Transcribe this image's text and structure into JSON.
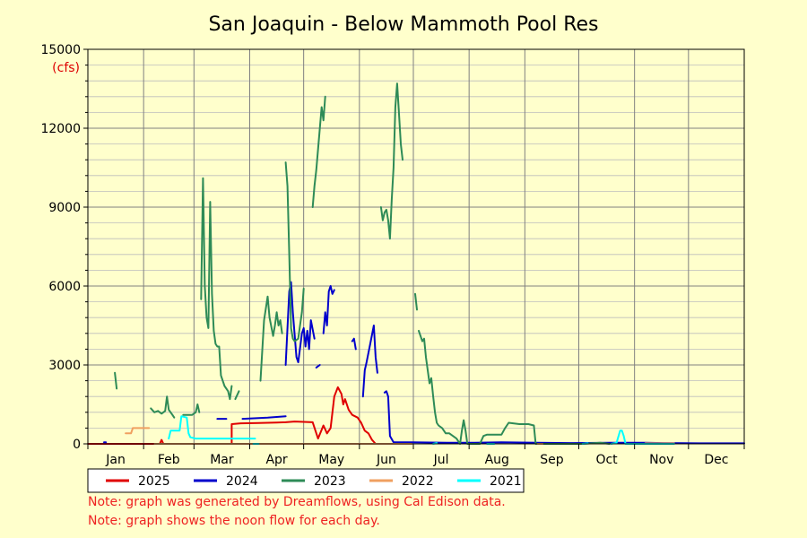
{
  "page": {
    "background": "#ffffcc"
  },
  "notes": [
    "Note: graph was generated by Dreamflows, using Cal Edison data.",
    "Note: graph shows the noon flow for each day."
  ],
  "chart_data": {
    "type": "line",
    "title": "San Joaquin - Below Mammoth Pool Res",
    "xlabel": "",
    "ylabel": "",
    "y_unit_label": "(cfs)",
    "ylim": [
      0,
      15000
    ],
    "y_ticks": [
      0,
      3000,
      6000,
      9000,
      12000,
      15000
    ],
    "x_range_days": [
      0,
      365
    ],
    "month_labels": [
      "Jan",
      "Feb",
      "Mar",
      "Apr",
      "May",
      "Jun",
      "Jul",
      "Aug",
      "Sep",
      "Oct",
      "Nov",
      "Dec"
    ],
    "month_starts_day": [
      0,
      31,
      59,
      90,
      120,
      151,
      181,
      212,
      243,
      273,
      304,
      334,
      365
    ],
    "grid": true,
    "legend_position": "bottom",
    "series": [
      {
        "name": "2025",
        "color": "#e00000",
        "segments": [
          [
            [
              0,
              0
            ],
            [
              40,
              0
            ],
            [
              41,
              150
            ],
            [
              42,
              0
            ],
            [
              80,
              0
            ],
            [
              80,
              750
            ],
            [
              85,
              780
            ],
            [
              95,
              790
            ],
            [
              105,
              810
            ],
            [
              110,
              820
            ],
            [
              115,
              850
            ],
            [
              125,
              820
            ],
            [
              128,
              200
            ],
            [
              131,
              700
            ],
            [
              133,
              400
            ],
            [
              135,
              600
            ],
            [
              137,
              1800
            ],
            [
              139,
              2150
            ],
            [
              141,
              1900
            ],
            [
              142,
              1500
            ],
            [
              143,
              1700
            ],
            [
              145,
              1300
            ],
            [
              147,
              1100
            ],
            [
              150,
              1000
            ],
            [
              152,
              800
            ],
            [
              154,
              500
            ],
            [
              156,
              400
            ],
            [
              158,
              150
            ],
            [
              160,
              0
            ],
            [
              175,
              0
            ],
            [
              180,
              0
            ]
          ]
        ]
      },
      {
        "name": "2024",
        "color": "#0000cc",
        "segments": [
          [
            [
              9,
              60
            ],
            [
              10,
              60
            ]
          ],
          [
            [
              72,
              950
            ],
            [
              77,
              950
            ]
          ],
          [
            [
              86,
              950
            ],
            [
              100,
              1000
            ],
            [
              110,
              1050
            ]
          ],
          [
            [
              110,
              3000
            ],
            [
              112,
              5800
            ],
            [
              113,
              6150
            ],
            [
              114,
              5000
            ],
            [
              116,
              3300
            ],
            [
              117,
              3100
            ],
            [
              119,
              4200
            ],
            [
              120,
              4400
            ],
            [
              121,
              3700
            ],
            [
              122,
              4300
            ],
            [
              123,
              3600
            ],
            [
              124,
              4700
            ],
            [
              126,
              4000
            ]
          ],
          [
            [
              127,
              2900
            ],
            [
              129,
              3000
            ]
          ],
          [
            [
              131,
              4200
            ],
            [
              132,
              5000
            ],
            [
              133,
              4500
            ],
            [
              134,
              5800
            ],
            [
              135,
              6000
            ],
            [
              136,
              5700
            ],
            [
              137,
              5850
            ]
          ],
          [
            [
              147,
              3900
            ],
            [
              148,
              4000
            ],
            [
              149,
              3600
            ]
          ],
          [
            [
              153,
              1800
            ],
            [
              154,
              2800
            ],
            [
              155,
              3100
            ],
            [
              157,
              3800
            ],
            [
              159,
              4500
            ],
            [
              160,
              3300
            ],
            [
              161,
              2700
            ]
          ],
          [
            [
              165,
              1950
            ],
            [
              166,
              2000
            ],
            [
              167,
              1800
            ],
            [
              168,
              300
            ],
            [
              170,
              60
            ],
            [
              180,
              60
            ],
            [
              200,
              40
            ],
            [
              215,
              40
            ],
            [
              230,
              60
            ],
            [
              250,
              40
            ],
            [
              270,
              30
            ],
            [
              290,
              40
            ],
            [
              310,
              40
            ],
            [
              320,
              30
            ],
            [
              340,
              20
            ],
            [
              365,
              20
            ]
          ]
        ]
      },
      {
        "name": "2023",
        "color": "#2e8b57",
        "segments": [
          [
            [
              15,
              2700
            ],
            [
              16,
              2100
            ]
          ],
          [
            [
              35,
              1350
            ],
            [
              37,
              1200
            ],
            [
              39,
              1250
            ],
            [
              41,
              1150
            ],
            [
              43,
              1250
            ],
            [
              44,
              1800
            ],
            [
              45,
              1300
            ],
            [
              47,
              1100
            ],
            [
              48,
              1000
            ]
          ],
          [
            [
              53,
              1100
            ],
            [
              58,
              1100
            ],
            [
              60,
              1200
            ],
            [
              61,
              1500
            ],
            [
              62,
              1200
            ]
          ],
          [
            [
              63,
              5500
            ],
            [
              64,
              10100
            ],
            [
              65,
              6000
            ],
            [
              66,
              4800
            ],
            [
              67,
              4400
            ],
            [
              68,
              9200
            ],
            [
              69,
              5700
            ],
            [
              70,
              4300
            ],
            [
              71,
              3800
            ],
            [
              72,
              3700
            ],
            [
              73,
              3700
            ],
            [
              74,
              2600
            ],
            [
              76,
              2200
            ],
            [
              78,
              2000
            ],
            [
              79,
              1700
            ],
            [
              80,
              2200
            ]
          ],
          [
            [
              82,
              1700
            ],
            [
              84,
              2000
            ]
          ],
          [
            [
              96,
              2400
            ],
            [
              98,
              4700
            ],
            [
              100,
              5600
            ],
            [
              101,
              4800
            ],
            [
              103,
              4100
            ],
            [
              104,
              4500
            ],
            [
              105,
              5000
            ],
            [
              106,
              4500
            ],
            [
              107,
              4700
            ],
            [
              108,
              4200
            ]
          ],
          [
            [
              110,
              10700
            ],
            [
              111,
              9800
            ],
            [
              112,
              7200
            ],
            [
              113,
              4400
            ],
            [
              114,
              4000
            ],
            [
              115,
              3900
            ],
            [
              117,
              4000
            ],
            [
              118,
              4500
            ],
            [
              119,
              5000
            ],
            [
              120,
              5900
            ]
          ],
          [
            [
              125,
              9000
            ],
            [
              126,
              9800
            ],
            [
              127,
              10400
            ],
            [
              128,
              11200
            ],
            [
              129,
              12000
            ],
            [
              130,
              12800
            ],
            [
              131,
              12300
            ],
            [
              132,
              13200
            ]
          ],
          [
            [
              163,
              9000
            ],
            [
              164,
              8500
            ],
            [
              165,
              8800
            ],
            [
              166,
              8900
            ],
            [
              167,
              8500
            ],
            [
              168,
              7800
            ],
            [
              169,
              9300
            ],
            [
              170,
              10500
            ],
            [
              171,
              12800
            ],
            [
              172,
              13700
            ],
            [
              173,
              12600
            ],
            [
              174,
              11400
            ],
            [
              175,
              10800
            ]
          ],
          [
            [
              182,
              5700
            ],
            [
              183,
              5100
            ]
          ],
          [
            [
              184,
              4300
            ],
            [
              186,
              3900
            ],
            [
              187,
              4000
            ],
            [
              188,
              3300
            ],
            [
              189,
              2800
            ],
            [
              190,
              2300
            ],
            [
              191,
              2500
            ],
            [
              192,
              1800
            ],
            [
              193,
              1200
            ],
            [
              194,
              800
            ],
            [
              195,
              700
            ],
            [
              197,
              600
            ],
            [
              199,
              400
            ],
            [
              201,
              400
            ],
            [
              203,
              300
            ],
            [
              205,
              200
            ],
            [
              206,
              100
            ],
            [
              207,
              0
            ],
            [
              208,
              500
            ],
            [
              209,
              900
            ],
            [
              210,
              500
            ],
            [
              211,
              0
            ],
            [
              215,
              0
            ],
            [
              218,
              0
            ],
            [
              220,
              300
            ],
            [
              222,
              350
            ],
            [
              230,
              350
            ],
            [
              232,
              600
            ],
            [
              234,
              800
            ],
            [
              240,
              750
            ],
            [
              245,
              750
            ],
            [
              248,
              700
            ],
            [
              249,
              0
            ],
            [
              255,
              0
            ],
            [
              265,
              0
            ],
            [
              275,
              0
            ],
            [
              285,
              40
            ],
            [
              290,
              0
            ]
          ]
        ]
      },
      {
        "name": "2022",
        "color": "#f0a060",
        "segments": [
          [
            [
              21,
              400
            ],
            [
              24,
              400
            ],
            [
              25,
              600
            ],
            [
              34,
              600
            ]
          ],
          [
            [
              37,
              0
            ],
            [
              100,
              0
            ],
            [
              150,
              0
            ],
            [
              180,
              0
            ]
          ],
          [
            [
              250,
              0
            ],
            [
              253,
              0
            ]
          ],
          [
            [
              310,
              20
            ],
            [
              326,
              20
            ]
          ]
        ]
      },
      {
        "name": "2021",
        "color": "#00ffff",
        "segments": [
          [
            [
              45,
              200
            ],
            [
              46,
              500
            ],
            [
              51,
              500
            ],
            [
              52,
              1050
            ],
            [
              55,
              1000
            ],
            [
              56,
              400
            ],
            [
              57,
              250
            ],
            [
              60,
              200
            ],
            [
              75,
              200
            ],
            [
              93,
              200
            ]
          ],
          [
            [
              92,
              0
            ],
            [
              95,
              0
            ]
          ],
          [
            [
              192,
              0
            ],
            [
              194,
              30
            ]
          ],
          [
            [
              222,
              0
            ],
            [
              226,
              0
            ]
          ],
          [
            [
              275,
              0
            ],
            [
              278,
              20
            ]
          ],
          [
            [
              291,
              0
            ],
            [
              294,
              40
            ],
            [
              296,
              500
            ],
            [
              297,
              500
            ],
            [
              298,
              300
            ],
            [
              299,
              0
            ],
            [
              304,
              0
            ],
            [
              326,
              0
            ]
          ]
        ]
      }
    ]
  }
}
